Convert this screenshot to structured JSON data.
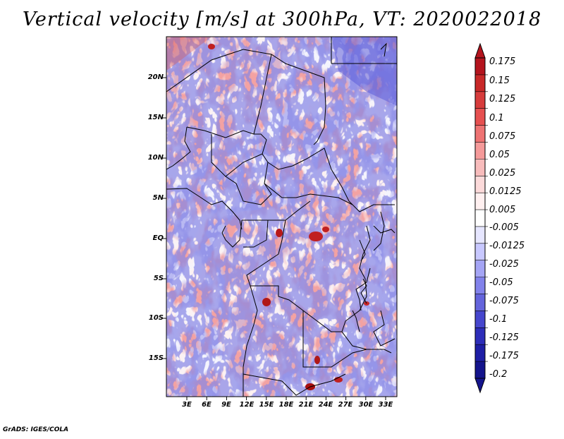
{
  "title": "Vertical velocity [m/s] at 300hPa, VT: 2020022018",
  "credit": "GrADS: IGES/COLA",
  "map": {
    "lat_labels": [
      "20N",
      "15N",
      "10N",
      "5N",
      "EQ",
      "5S",
      "10S",
      "15S"
    ],
    "lon_labels": [
      "3E",
      "6E",
      "9E",
      "12E",
      "15E",
      "18E",
      "21E",
      "24E",
      "27E",
      "30E",
      "33E"
    ],
    "field_variable": "vertical velocity",
    "units": "m/s",
    "level": "300hPa"
  },
  "colorbar": {
    "labels": [
      "0.175",
      "0.15",
      "0.125",
      "0.1",
      "0.075",
      "0.05",
      "0.025",
      "0.0125",
      "0.005",
      "-0.005",
      "-0.0125",
      "-0.025",
      "-0.05",
      "-0.075",
      "-0.1",
      "-0.125",
      "-0.175",
      "-0.2"
    ],
    "colors": [
      "#b4141e",
      "#c82828",
      "#d73c3c",
      "#e65050",
      "#ee7373",
      "#f59a9a",
      "#f8bcbc",
      "#fcdada",
      "#fff0f0",
      "#ffffff",
      "#e6e6ff",
      "#c8c8ff",
      "#a5a5f5",
      "#8282eb",
      "#6464dc",
      "#4646cd",
      "#2d2db9",
      "#1e1ea5",
      "#14148c"
    ]
  }
}
